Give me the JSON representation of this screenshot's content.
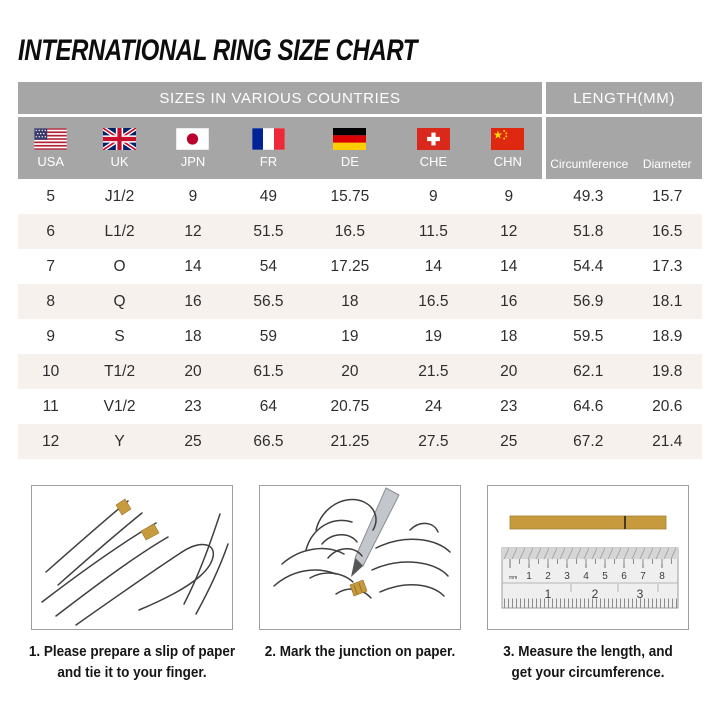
{
  "chart_data": {
    "type": "table",
    "title": "INTERNATIONAL RING SIZE CHART",
    "column_groups": [
      {
        "label": "SIZES IN VARIOUS COUNTRIES",
        "span": 7
      },
      {
        "label": "LENGTH(MM)",
        "span": 2
      }
    ],
    "columns": [
      "USA",
      "UK",
      "JPN",
      "FR",
      "DE",
      "CHE",
      "CHN",
      "Circumference",
      "Diameter"
    ],
    "flags": [
      "usa-flag",
      "uk-flag",
      "japan-flag",
      "france-flag",
      "germany-flag",
      "switzerland-flag",
      "china-flag"
    ],
    "rows": [
      [
        "5",
        "J1/2",
        "9",
        "49",
        "15.75",
        "9",
        "9",
        "49.3",
        "15.7"
      ],
      [
        "6",
        "L1/2",
        "12",
        "51.5",
        "16.5",
        "11.5",
        "12",
        "51.8",
        "16.5"
      ],
      [
        "7",
        "O",
        "14",
        "54",
        "17.25",
        "14",
        "14",
        "54.4",
        "17.3"
      ],
      [
        "8",
        "Q",
        "16",
        "56.5",
        "18",
        "16.5",
        "16",
        "56.9",
        "18.1"
      ],
      [
        "9",
        "S",
        "18",
        "59",
        "19",
        "19",
        "18",
        "59.5",
        "18.9"
      ],
      [
        "10",
        "T1/2",
        "20",
        "61.5",
        "20",
        "21.5",
        "20",
        "62.1",
        "19.8"
      ],
      [
        "11",
        "V1/2",
        "23",
        "64",
        "20.75",
        "24",
        "23",
        "64.6",
        "20.6"
      ],
      [
        "12",
        "Y",
        "25",
        "66.5",
        "21.25",
        "27.5",
        "25",
        "67.2",
        "21.4"
      ]
    ]
  },
  "instructions": [
    {
      "caption": "1. Please prepare a slip of paper\nand tie it to your finger.",
      "illustration": "hand-with-paper-strip"
    },
    {
      "caption": "2. Mark the junction on paper.",
      "illustration": "marking-junction-with-pen"
    },
    {
      "caption": "3. Measure the length, and\nget your circumference.",
      "illustration": "ruler-measuring-strip",
      "ruler": {
        "unit": "mm",
        "cm": [
          "1",
          "2",
          "3",
          "4",
          "5",
          "6",
          "7",
          "8"
        ],
        "inch": [
          "1",
          "2",
          "3"
        ]
      }
    }
  ],
  "colors": {
    "header_gray": "#a6a6a6",
    "row_alt_pink": "#f7f1ee",
    "paper_gold": "#c79a3e",
    "text_dark": "#2e2e2e"
  }
}
